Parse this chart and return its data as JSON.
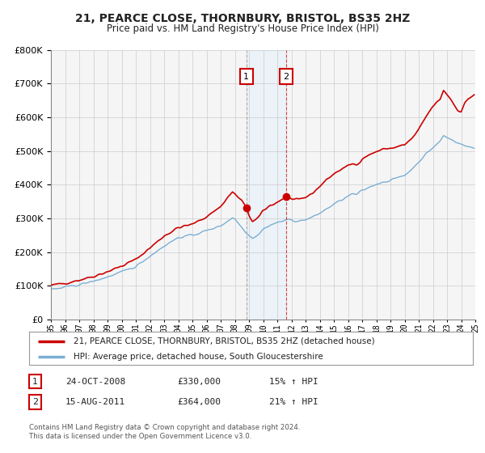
{
  "title": "21, PEARCE CLOSE, THORNBURY, BRISTOL, BS35 2HZ",
  "subtitle": "Price paid vs. HM Land Registry's House Price Index (HPI)",
  "legend_line1": "21, PEARCE CLOSE, THORNBURY, BRISTOL, BS35 2HZ (detached house)",
  "legend_line2": "HPI: Average price, detached house, South Gloucestershire",
  "red_color": "#cc0000",
  "blue_color": "#7bafd4",
  "shade_color": "#ddeeff",
  "point1_x": 2008.81,
  "point1_y": 330000,
  "point2_x": 2011.62,
  "point2_y": 364000,
  "table_row1": [
    "1",
    "24-OCT-2008",
    "£330,000",
    "15% ↑ HPI"
  ],
  "table_row2": [
    "2",
    "15-AUG-2011",
    "£364,000",
    "21% ↑ HPI"
  ],
  "footer_line1": "Contains HM Land Registry data © Crown copyright and database right 2024.",
  "footer_line2": "This data is licensed under the Open Government Licence v3.0.",
  "ylim": [
    0,
    800000
  ],
  "xlim": [
    1995,
    2025
  ],
  "background_color": "#f5f5f5",
  "grid_color": "#cccccc"
}
